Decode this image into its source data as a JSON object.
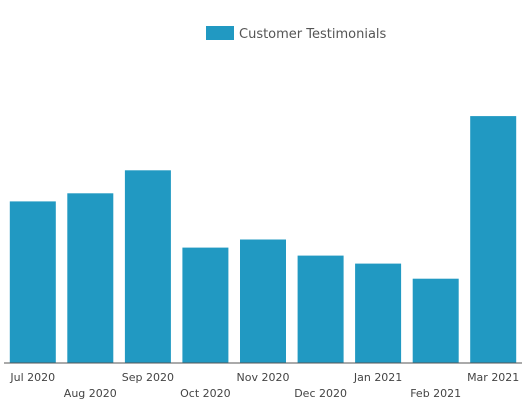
{
  "chart_data": {
    "type": "bar",
    "title": "",
    "xlabel": "",
    "ylabel": "",
    "categories": [
      "Jul 2020",
      "Aug 2020",
      "Sep 2020",
      "Oct 2020",
      "Nov 2020",
      "Dec 2020",
      "Jan 2021",
      "Feb 2021",
      "Mar 2021"
    ],
    "series": [
      {
        "name": "Customer Testimonials",
        "color": "#2199c2",
        "values": [
          161,
          169,
          192,
          115,
          123,
          107,
          99,
          84,
          246
        ]
      }
    ],
    "ylim": [
      0,
      260
    ],
    "grid": false,
    "legend_position": "top"
  }
}
